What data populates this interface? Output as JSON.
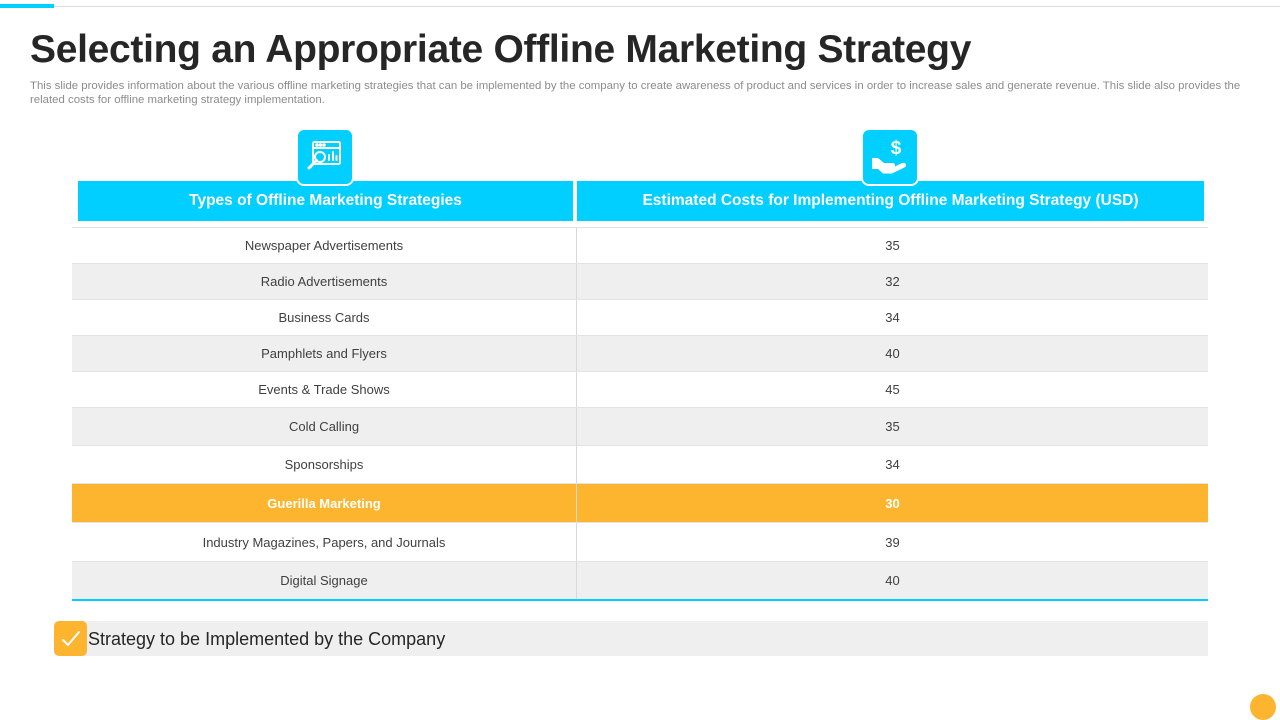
{
  "slide": {
    "title": "Selecting an Appropriate Offline Marketing Strategy",
    "subtitle": "This slide provides information about the various offline marketing strategies that can be implemented by the company to create awareness of product and services in order to increase sales and generate revenue. This slide also provides the related costs for offline marketing strategy implementation."
  },
  "table": {
    "headers": [
      "Types of Offline Marketing Strategies",
      "Estimated Costs for Implementing Offline Marketing Strategy (USD)"
    ],
    "rows": [
      {
        "strategy": "Newspaper  Advertisements",
        "cost": "35"
      },
      {
        "strategy": "Radio Advertisements",
        "cost": "32"
      },
      {
        "strategy": "Business Cards",
        "cost": "34"
      },
      {
        "strategy": "Pamphlets and Flyers",
        "cost": "40"
      },
      {
        "strategy": "Events & Trade Shows",
        "cost": "45"
      },
      {
        "strategy": "Cold Calling",
        "cost": "35"
      },
      {
        "strategy": "Sponsorships",
        "cost": "34"
      },
      {
        "strategy": "Guerilla Marketing",
        "cost": "30"
      },
      {
        "strategy": "Industry Magazines, Papers, and Journals",
        "cost": "39"
      },
      {
        "strategy": "Digital Signage",
        "cost": "40"
      }
    ],
    "highlighted_row": 7
  },
  "legend": {
    "text": "Strategy to be Implemented by the Company",
    "icon": "checkmark-icon"
  },
  "icons": {
    "strategies": "web-analytics-search-icon",
    "costs": "hand-dollar-icon"
  },
  "colors": {
    "accent": "#00cfff",
    "highlight": "#fdb52f",
    "alt_row": "#efefef"
  }
}
